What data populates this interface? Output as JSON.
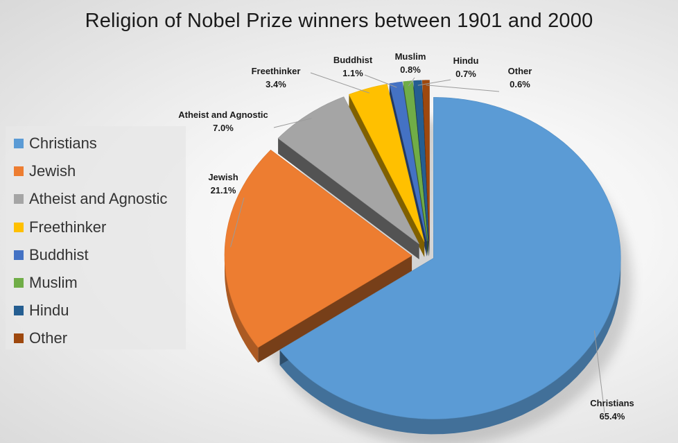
{
  "chart_data": {
    "type": "pie",
    "title": "Religion of Nobel Prize winners between 1901 and 2000",
    "categories": [
      "Christians",
      "Jewish",
      "Atheist and Agnostic",
      "Freethinker",
      "Buddhist",
      "Muslim",
      "Hindu",
      "Other"
    ],
    "values": [
      65.4,
      21.1,
      7.0,
      3.4,
      1.1,
      0.8,
      0.7,
      0.6
    ],
    "value_labels": [
      "65.4%",
      "21.1%",
      "7.0%",
      "3.4%",
      "1.1%",
      "0.8%",
      "0.7%",
      "0.6%"
    ],
    "colors": [
      "#5B9BD5",
      "#ED7D31",
      "#A5A5A5",
      "#FFC000",
      "#4472C4",
      "#70AD47",
      "#255E91",
      "#9E480E"
    ],
    "legend_position": "left",
    "style": "3d-exploded",
    "grid": false
  }
}
